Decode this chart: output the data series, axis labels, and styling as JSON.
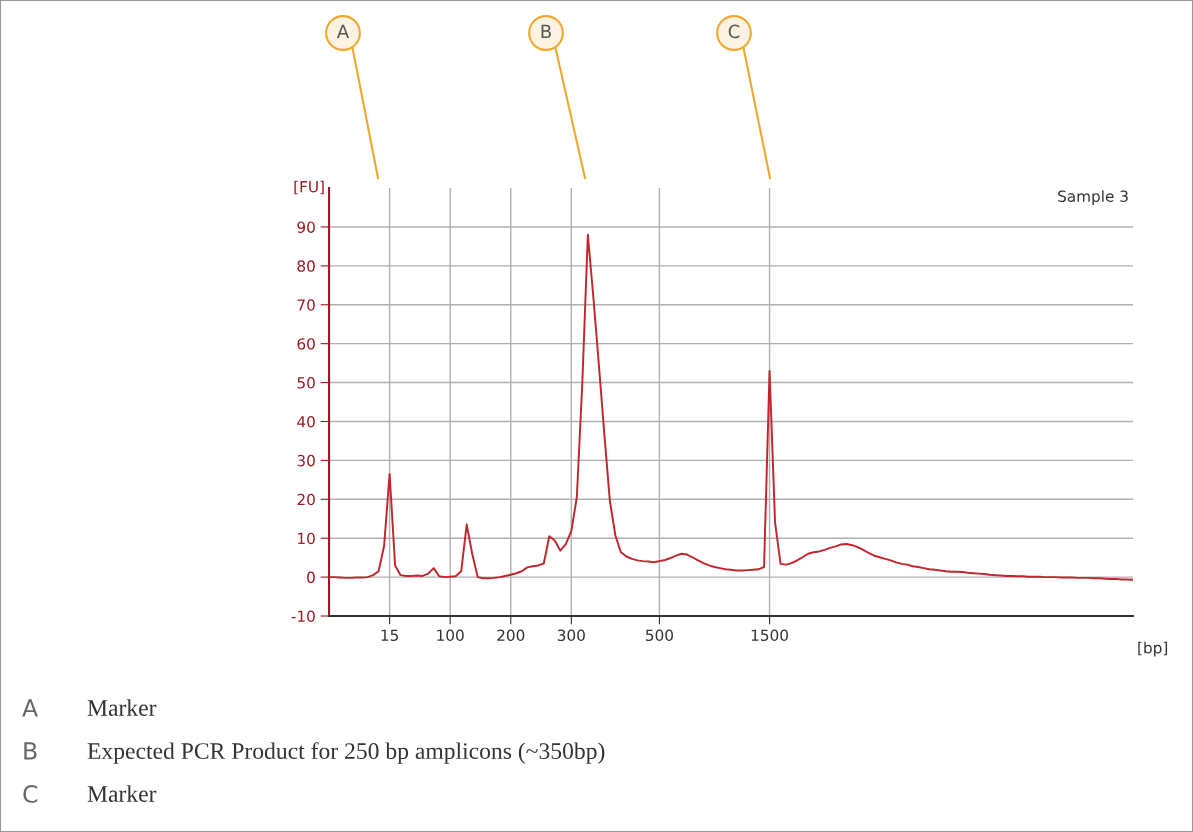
{
  "chart_data": {
    "type": "line",
    "xlabel": "[bp]",
    "ylabel": "[FU]",
    "categories": [
      null,
      null,
      null,
      null,
      null,
      null,
      null,
      null,
      null,
      null,
      null,
      "15",
      null,
      null,
      null,
      null,
      null,
      null,
      null,
      null,
      null,
      null,
      "100",
      null,
      null,
      null,
      null,
      null,
      null,
      null,
      null,
      null,
      null,
      "200",
      null,
      null,
      null,
      null,
      null,
      null,
      null,
      null,
      null,
      null,
      "300",
      null,
      null,
      null,
      null,
      null,
      null,
      null,
      null,
      null,
      null,
      null,
      null,
      null,
      null,
      null,
      "500",
      null,
      null,
      null,
      null,
      null,
      null,
      null,
      null,
      null,
      null,
      null,
      null,
      null,
      null,
      null,
      null,
      null,
      null,
      null,
      "1500",
      null,
      null,
      null,
      null,
      null,
      null,
      null,
      null,
      null,
      null,
      null,
      null,
      null,
      null,
      null,
      null,
      null,
      null,
      null,
      null,
      null,
      null,
      null,
      null,
      null,
      null,
      null,
      null,
      null,
      null,
      null,
      null,
      null,
      null,
      null,
      null,
      null,
      null,
      null,
      null,
      null,
      null,
      null,
      null,
      null,
      null,
      null,
      null,
      null,
      null,
      null,
      null,
      null,
      null,
      null,
      null,
      null,
      null,
      null,
      null,
      null,
      null,
      null,
      null,
      null,
      null
    ],
    "series": [
      {
        "color": "#c0272d",
        "values": [
          0.0,
          0.0,
          -0.1,
          -0.2,
          -0.2,
          -0.1,
          -0.1,
          0.0,
          0.5,
          1.5,
          8,
          26.5,
          3.0,
          0.5,
          0.3,
          0.3,
          0.4,
          0.3,
          0.9,
          2.3,
          0.2,
          0.0,
          0.1,
          0.2,
          1.5,
          13.5,
          6,
          0.0,
          -0.3,
          -0.3,
          -0.2,
          0.0,
          0.3,
          0.6,
          1.0,
          1.5,
          2.5,
          2.8,
          3.0,
          3.5,
          10.5,
          9.4,
          6.8,
          8.5,
          11.9,
          20.5,
          50,
          88,
          72,
          54.6,
          36.7,
          19.6,
          10.7,
          6.4,
          5.3,
          4.7,
          4.3,
          4.1,
          4.0,
          3.8,
          4.1,
          4.4,
          4.9,
          5.5,
          6.0,
          5.8,
          5.1,
          4.3,
          3.6,
          3.0,
          2.6,
          2.3,
          2.0,
          1.9,
          1.7,
          1.7,
          1.8,
          1.9,
          2.0,
          2.6,
          53,
          14,
          3.4,
          3.2,
          3.6,
          4.3,
          5.1,
          6.0,
          6.4,
          6.6,
          7.0,
          7.5,
          7.9,
          8.4,
          8.5,
          8.2,
          7.7,
          7.0,
          6.2,
          5.5,
          5.1,
          4.7,
          4.3,
          3.8,
          3.4,
          3.2,
          2.8,
          2.6,
          2.3,
          2.0,
          1.9,
          1.7,
          1.5,
          1.4,
          1.4,
          1.3,
          1.1,
          1.0,
          0.9,
          0.8,
          0.6,
          0.5,
          0.4,
          0.3,
          0.3,
          0.2,
          0.2,
          0.1,
          0.1,
          0.1,
          0.0,
          0.0,
          0.0,
          -0.1,
          -0.1,
          -0.1,
          -0.2,
          -0.2,
          -0.2,
          -0.3,
          -0.3,
          -0.4,
          -0.5,
          -0.5,
          -0.6,
          -0.6,
          -0.7
        ]
      }
    ],
    "ylim": [
      -10,
      100
    ],
    "yticks": [
      -10,
      0,
      10,
      20,
      30,
      40,
      50,
      60,
      70,
      80,
      90
    ],
    "grid": true,
    "annotations": [
      "A",
      "B",
      "C",
      "Sample 3",
      "A Marker",
      "B Expected PCR Product for 250 bp amplicons (~350bp)",
      "C Marker"
    ]
  }
}
